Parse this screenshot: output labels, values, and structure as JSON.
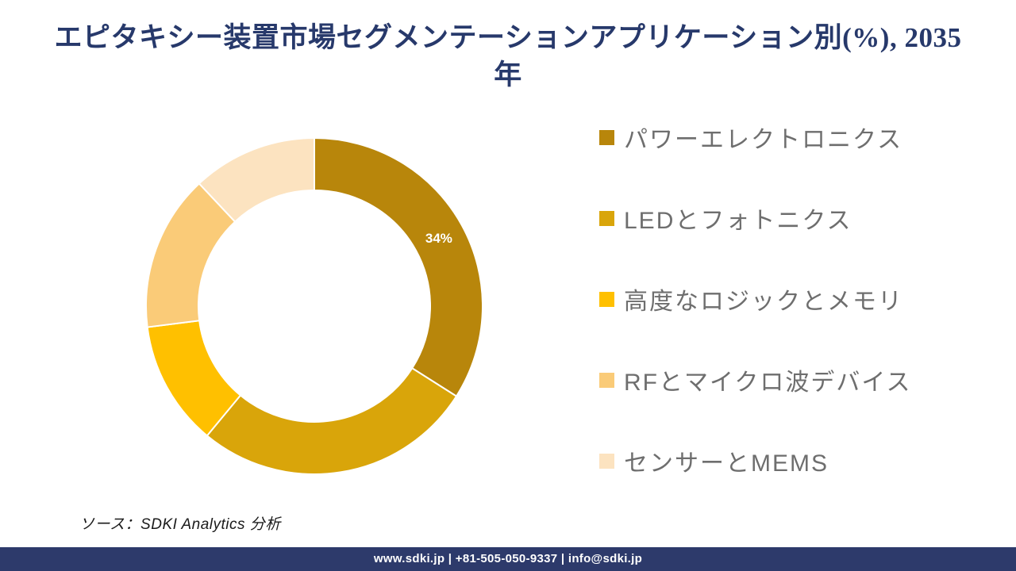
{
  "title": {
    "line1": "エピタキシー装置市場セグメンテーションアプリケーション別(%), 2035",
    "line2": "年"
  },
  "chart_data": {
    "type": "pie",
    "subtype": "donut",
    "title": "エピタキシー装置市場セグメンテーションアプリケーション別(%), 2035年",
    "unit": "%",
    "start_angle_deg": 0,
    "direction": "clockwise",
    "inner_radius_ratio": 0.69,
    "legend_position": "right",
    "segments": [
      {
        "label": "パワーエレクトロニクス",
        "value": 34,
        "color": "#B8860B",
        "data_label": "34%"
      },
      {
        "label": "LEDとフォトニクス",
        "value": 27,
        "color": "#D9A50A",
        "data_label": ""
      },
      {
        "label": "高度なロジックとメモリ",
        "value": 12,
        "color": "#FFC000",
        "data_label": ""
      },
      {
        "label": "RFとマイクロ波デバイス",
        "value": 15,
        "color": "#FACB78",
        "data_label": ""
      },
      {
        "label": "センサーとMEMS",
        "value": 12,
        "color": "#FCE3C0",
        "data_label": ""
      }
    ]
  },
  "source_note": "ソース：SDKI Analytics 分析",
  "footer": {
    "text": "www.sdki.jp | +81-505-050-9337 | info@sdki.jp",
    "bg_color": "#2D3A6B"
  },
  "colors": {
    "title_text": "#27396B",
    "legend_text": "#6E6E6E",
    "data_label_text": "#FFFFFF",
    "segment_gap": "#FFFFFF"
  }
}
